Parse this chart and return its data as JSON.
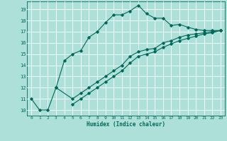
{
  "xlabel": "Humidex (Indice chaleur)",
  "background_color": "#aee0da",
  "grid_color": "#ffffff",
  "line_color": "#006858",
  "xlim": [
    -0.5,
    23.5
  ],
  "ylim": [
    9.5,
    19.7
  ],
  "xticks": [
    0,
    1,
    2,
    3,
    4,
    5,
    6,
    7,
    8,
    9,
    10,
    11,
    12,
    13,
    14,
    15,
    16,
    17,
    18,
    19,
    20,
    21,
    22,
    23
  ],
  "yticks": [
    10,
    11,
    12,
    13,
    14,
    15,
    16,
    17,
    18,
    19
  ],
  "line1_x": [
    0,
    1,
    2,
    3,
    4,
    5,
    6,
    7,
    8,
    9,
    10,
    11,
    12,
    13,
    14,
    15,
    16,
    17,
    18,
    19,
    20,
    21,
    22,
    23
  ],
  "line1_y": [
    11,
    10,
    10,
    12,
    14.4,
    15,
    15.3,
    16.5,
    17,
    17.8,
    18.5,
    18.5,
    18.85,
    19.35,
    18.6,
    18.2,
    18.2,
    17.55,
    17.65,
    17.4,
    17.2,
    17.1,
    17.1,
    17.1
  ],
  "line2_x": [
    3,
    5,
    6,
    7,
    8,
    9,
    10,
    11,
    12,
    13,
    14,
    15,
    16,
    17,
    18,
    19,
    20,
    21,
    22,
    23
  ],
  "line2_y": [
    12,
    11,
    11.5,
    12,
    12.5,
    13,
    13.5,
    14,
    14.8,
    15.2,
    15.4,
    15.5,
    16,
    16.2,
    16.5,
    16.7,
    16.8,
    16.9,
    17,
    17.1
  ],
  "line3_x": [
    5,
    6,
    7,
    8,
    9,
    10,
    11,
    12,
    13,
    14,
    15,
    16,
    17,
    18,
    19,
    20,
    21,
    22,
    23
  ],
  "line3_y": [
    10.5,
    11,
    11.5,
    12,
    12.5,
    13,
    13.5,
    14.2,
    14.8,
    15,
    15.2,
    15.6,
    15.9,
    16.2,
    16.4,
    16.6,
    16.8,
    16.9,
    17.1
  ]
}
